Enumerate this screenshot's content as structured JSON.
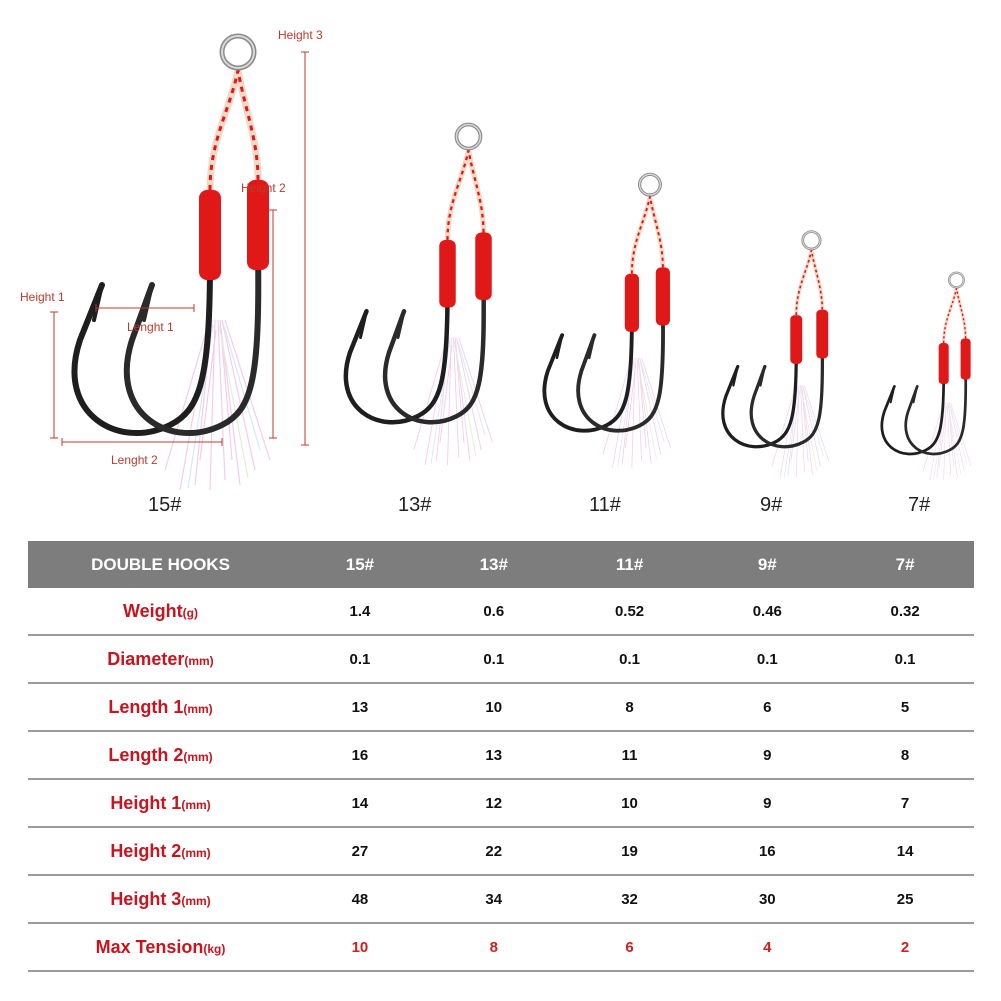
{
  "illustration": {
    "dimension_labels": {
      "height1": "Height 1",
      "height2": "Height 2",
      "height3": "Height 3",
      "length1": "Lenght 1",
      "length2": "Lenght 2"
    },
    "hook_sizes": [
      "15#",
      "13#",
      "11#",
      "9#",
      "7#"
    ],
    "colors": {
      "thread": "#e01818",
      "hook": "#1e1e1e",
      "dimension": "#c0392b",
      "tinsel": "#f3c4e8"
    }
  },
  "table": {
    "header_label": "DOUBLE HOOKS",
    "columns": [
      "15#",
      "13#",
      "11#",
      "9#",
      "7#"
    ],
    "rows": [
      {
        "name": "Weight",
        "unit": "(g)",
        "values": [
          "1.4",
          "0.6",
          "0.52",
          "0.46",
          "0.32"
        ]
      },
      {
        "name": "Diameter",
        "unit": "(mm)",
        "values": [
          "0.1",
          "0.1",
          "0.1",
          "0.1",
          "0.1"
        ]
      },
      {
        "name": "Length 1",
        "unit": "(mm)",
        "values": [
          "13",
          "10",
          "8",
          "6",
          "5"
        ]
      },
      {
        "name": "Length 2",
        "unit": "(mm)",
        "values": [
          "16",
          "13",
          "11",
          "9",
          "8"
        ]
      },
      {
        "name": "Height 1",
        "unit": "(mm)",
        "values": [
          "14",
          "12",
          "10",
          "9",
          "7"
        ]
      },
      {
        "name": "Height 2",
        "unit": "(mm)",
        "values": [
          "27",
          "22",
          "19",
          "16",
          "14"
        ]
      },
      {
        "name": "Height 3",
        "unit": "(mm)",
        "values": [
          "48",
          "34",
          "32",
          "30",
          "25"
        ]
      },
      {
        "name": "Max Tension",
        "unit": "(kg)",
        "values": [
          "10",
          "8",
          "6",
          "4",
          "2"
        ]
      }
    ],
    "colors": {
      "header_bg": "#7d7d7d",
      "label_red": "#c8141e",
      "tension_red": "#d41e1e"
    }
  }
}
